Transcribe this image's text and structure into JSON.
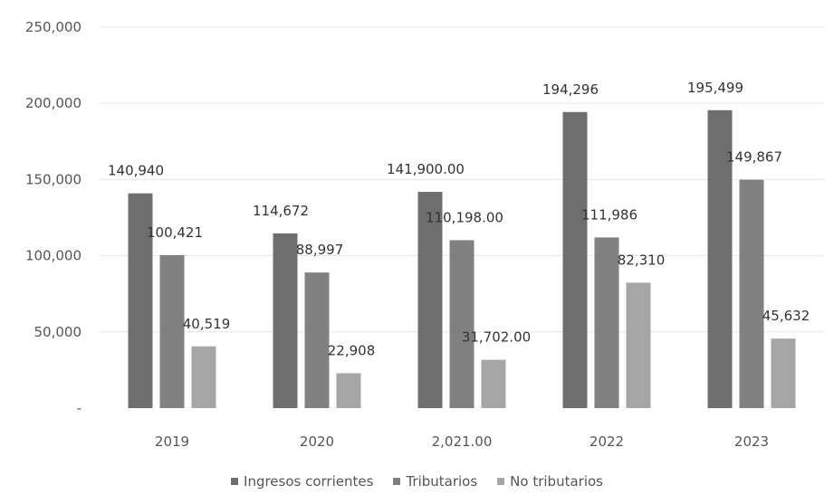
{
  "chart_data": {
    "type": "bar",
    "categories": [
      "2019",
      "2020",
      "2,021.00",
      "2022",
      "2023"
    ],
    "series": [
      {
        "name": "Ingresos corrientes",
        "color": "#6e6e6e",
        "values": [
          140940,
          114672,
          141900,
          194296,
          195499
        ],
        "labels": [
          "140,940",
          "114,672",
          "141,900.00",
          "194,296",
          "195,499"
        ]
      },
      {
        "name": "Tributarios",
        "color": "#808080",
        "values": [
          100421,
          88997,
          110198,
          111986,
          149867
        ],
        "labels": [
          "100,421",
          "88,997",
          "110,198.00",
          "111,986",
          "149,867"
        ]
      },
      {
        "name": "No tributarios",
        "color": "#a6a6a6",
        "values": [
          40519,
          22908,
          31702,
          82310,
          45632
        ],
        "labels": [
          "40,519",
          "22,908",
          "31,702.00",
          "82,310",
          "45,632"
        ]
      }
    ],
    "ylim": [
      0,
      250000
    ],
    "yticks": [
      0,
      50000,
      100000,
      150000,
      200000,
      250000
    ],
    "ytick_labels": [
      "-",
      "50,000",
      "100,000",
      "150,000",
      "200,000",
      "250,000"
    ],
    "grid": true,
    "legend_position": "bottom"
  }
}
